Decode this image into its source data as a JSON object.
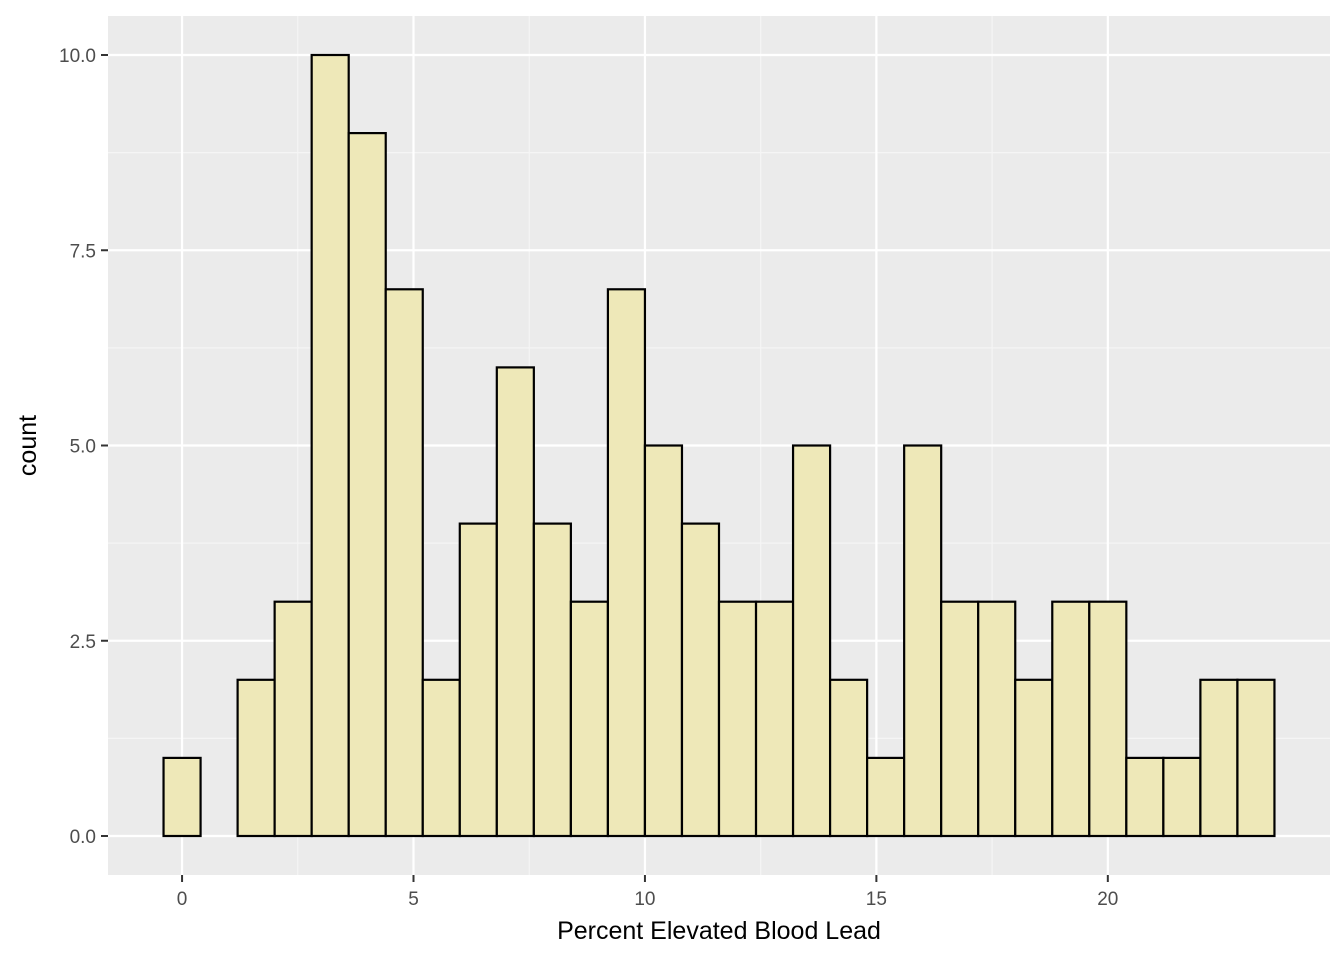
{
  "chart_data": {
    "type": "bar",
    "subtype": "histogram",
    "title": "",
    "xlabel": "Percent Elevated Blood Lead",
    "ylabel": "count",
    "xlim": [
      -0.4,
      23.6
    ],
    "ylim": [
      0,
      10
    ],
    "x_ticks": [
      {
        "value": 0,
        "label": "0"
      },
      {
        "value": 5,
        "label": "5"
      },
      {
        "value": 10,
        "label": "10"
      },
      {
        "value": 15,
        "label": "15"
      },
      {
        "value": 20,
        "label": "20"
      }
    ],
    "y_ticks": [
      {
        "value": 0,
        "label": "0.0"
      },
      {
        "value": 2.5,
        "label": "2.5"
      },
      {
        "value": 5,
        "label": "5.0"
      },
      {
        "value": 7.5,
        "label": "7.5"
      },
      {
        "value": 10,
        "label": "10.0"
      }
    ],
    "bins": [
      {
        "x0": -0.4,
        "x1": 0.4,
        "count": 1
      },
      {
        "x0": 0.4,
        "x1": 1.2,
        "count": 0
      },
      {
        "x0": 1.2,
        "x1": 2.0,
        "count": 2
      },
      {
        "x0": 2.0,
        "x1": 2.8,
        "count": 3
      },
      {
        "x0": 2.8,
        "x1": 3.6,
        "count": 10
      },
      {
        "x0": 3.6,
        "x1": 4.4,
        "count": 9
      },
      {
        "x0": 4.4,
        "x1": 5.2,
        "count": 7
      },
      {
        "x0": 5.2,
        "x1": 6.0,
        "count": 2
      },
      {
        "x0": 6.0,
        "x1": 6.8,
        "count": 4
      },
      {
        "x0": 6.8,
        "x1": 7.6,
        "count": 6
      },
      {
        "x0": 7.6,
        "x1": 8.4,
        "count": 4
      },
      {
        "x0": 8.4,
        "x1": 9.2,
        "count": 3
      },
      {
        "x0": 9.2,
        "x1": 10.0,
        "count": 7
      },
      {
        "x0": 10.0,
        "x1": 10.8,
        "count": 5
      },
      {
        "x0": 10.8,
        "x1": 11.6,
        "count": 4
      },
      {
        "x0": 11.6,
        "x1": 12.4,
        "count": 3
      },
      {
        "x0": 12.4,
        "x1": 13.2,
        "count": 3
      },
      {
        "x0": 13.2,
        "x1": 14.0,
        "count": 5
      },
      {
        "x0": 14.0,
        "x1": 14.8,
        "count": 2
      },
      {
        "x0": 14.8,
        "x1": 15.6,
        "count": 1
      },
      {
        "x0": 15.6,
        "x1": 16.4,
        "count": 5
      },
      {
        "x0": 16.4,
        "x1": 17.2,
        "count": 3
      },
      {
        "x0": 17.2,
        "x1": 18.0,
        "count": 3
      },
      {
        "x0": 18.0,
        "x1": 18.8,
        "count": 2
      },
      {
        "x0": 18.8,
        "x1": 19.6,
        "count": 3
      },
      {
        "x0": 19.6,
        "x1": 20.4,
        "count": 3
      },
      {
        "x0": 20.4,
        "x1": 21.2,
        "count": 1
      },
      {
        "x0": 21.2,
        "x1": 22.0,
        "count": 1
      },
      {
        "x0": 22.0,
        "x1": 22.8,
        "count": 2
      },
      {
        "x0": 22.8,
        "x1": 23.6,
        "count": 2
      }
    ],
    "grid": true,
    "colors": {
      "panel_background": "#ebebeb",
      "grid_major": "#ffffff",
      "grid_minor": "#f5f5f5",
      "bar_fill": "#eee8b8",
      "bar_stroke": "#000000"
    }
  }
}
